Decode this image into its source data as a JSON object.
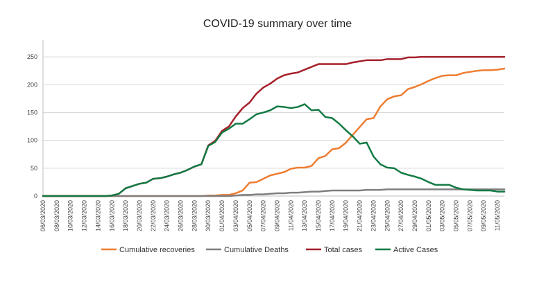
{
  "colors": {
    "recoveries": "#ED7D31",
    "deaths": "#7F7F7F",
    "total": "#A5202A",
    "active": "#137A43",
    "grid": "#D9D9D9",
    "axis": "#BFBFBF"
  },
  "chart_data": {
    "type": "line",
    "title": "COVID-19 summary over time",
    "xlabel": "",
    "ylabel": "",
    "ylim": [
      0,
      280
    ],
    "yticks": [
      0,
      50,
      100,
      150,
      200,
      250
    ],
    "grid": true,
    "legend_position": "bottom",
    "x": [
      "06/03/2020",
      "07/03/2020",
      "08/03/2020",
      "09/03/2020",
      "10/03/2020",
      "11/03/2020",
      "12/03/2020",
      "13/03/2020",
      "14/03/2020",
      "15/03/2020",
      "16/03/2020",
      "17/03/2020",
      "18/03/2020",
      "19/03/2020",
      "20/03/2020",
      "21/03/2020",
      "22/03/2020",
      "23/03/2020",
      "24/03/2020",
      "25/03/2020",
      "26/03/2020",
      "27/03/2020",
      "28/03/2020",
      "29/03/2020",
      "30/03/2020",
      "31/03/2020",
      "01/04/2020",
      "02/04/2020",
      "03/04/2020",
      "04/04/2020",
      "05/04/2020",
      "06/04/2020",
      "07/04/2020",
      "08/04/2020",
      "09/04/2020",
      "10/04/2020",
      "11/04/2020",
      "12/04/2020",
      "13/04/2020",
      "14/04/2020",
      "15/04/2020",
      "16/04/2020",
      "17/04/2020",
      "18/04/2020",
      "19/04/2020",
      "20/04/2020",
      "21/04/2020",
      "22/04/2020",
      "23/04/2020",
      "24/04/2020",
      "25/04/2020",
      "26/04/2020",
      "27/04/2020",
      "28/04/2020",
      "29/04/2020",
      "30/04/2020",
      "01/05/2020",
      "02/05/2020",
      "03/05/2020",
      "04/05/2020",
      "05/05/2020",
      "06/05/2020",
      "07/05/2020",
      "08/05/2020",
      "09/05/2020",
      "10/05/2020",
      "11/05/2020",
      "12/05/2020"
    ],
    "x_tick_labels": [
      "06/03/2020",
      "08/03/2020",
      "10/03/2020",
      "12/03/2020",
      "14/03/2020",
      "16/03/2020",
      "18/03/2020",
      "20/03/2020",
      "22/03/2020",
      "24/03/2020",
      "26/03/2020",
      "28/03/2020",
      "30/03/2020",
      "01/04/2020",
      "03/04/2020",
      "05/04/2020",
      "07/04/2020",
      "09/04/2020",
      "11/04/2020",
      "13/04/2020",
      "15/04/2020",
      "17/04/2020",
      "19/04/2020",
      "21/04/2020",
      "23/04/2020",
      "25/04/2020",
      "27/04/2020",
      "29/04/2020",
      "01/05/2020",
      "03/05/2020",
      "05/05/2020",
      "07/05/2020",
      "09/05/2020",
      "11/05/2020"
    ],
    "series": [
      {
        "name": "Cumulative recoveries",
        "color_key": "recoveries",
        "values": [
          0,
          0,
          0,
          0,
          0,
          0,
          0,
          0,
          0,
          0,
          0,
          0,
          0,
          0,
          0,
          0,
          0,
          0,
          0,
          0,
          0,
          0,
          0,
          0,
          1,
          1,
          2,
          2,
          5,
          10,
          24,
          25,
          31,
          37,
          40,
          43,
          49,
          51,
          51,
          54,
          68,
          72,
          84,
          86,
          96,
          110,
          124,
          138,
          140,
          161,
          174,
          179,
          181,
          192,
          196,
          201,
          207,
          212,
          216,
          217,
          217,
          221,
          223,
          225,
          226,
          226,
          227,
          229
        ]
      },
      {
        "name": "Cumulative Deaths",
        "color_key": "deaths",
        "values": [
          0,
          0,
          0,
          0,
          0,
          0,
          0,
          0,
          0,
          0,
          0,
          0,
          0,
          0,
          0,
          0,
          0,
          0,
          0,
          0,
          0,
          0,
          0,
          0,
          0,
          0,
          0,
          0,
          1,
          2,
          2,
          3,
          3,
          4,
          5,
          5,
          6,
          6,
          7,
          8,
          8,
          9,
          10,
          10,
          10,
          10,
          10,
          11,
          11,
          11,
          12,
          12,
          12,
          12,
          12,
          12,
          12,
          12,
          12,
          12,
          12,
          12,
          12,
          12,
          12,
          12,
          12,
          12
        ]
      },
      {
        "name": "Total cases",
        "color_key": "total",
        "values": [
          0,
          0,
          0,
          0,
          0,
          0,
          0,
          0,
          0,
          0,
          1,
          4,
          14,
          18,
          22,
          24,
          31,
          32,
          35,
          39,
          42,
          47,
          53,
          57,
          91,
          99,
          117,
          125,
          143,
          158,
          168,
          184,
          195,
          202,
          211,
          217,
          220,
          222,
          227,
          232,
          237,
          237,
          237,
          237,
          237,
          240,
          242,
          244,
          244,
          244,
          246,
          246,
          246,
          249,
          249,
          250,
          250,
          250,
          250,
          250,
          250,
          250,
          250,
          250,
          250,
          250,
          250,
          250
        ]
      },
      {
        "name": "Active Cases",
        "color_key": "active",
        "values": [
          0,
          0,
          0,
          0,
          0,
          0,
          0,
          0,
          0,
          0,
          1,
          4,
          14,
          18,
          22,
          24,
          31,
          32,
          35,
          39,
          42,
          47,
          53,
          57,
          90,
          97,
          114,
          121,
          130,
          130,
          138,
          147,
          150,
          154,
          161,
          160,
          158,
          160,
          165,
          154,
          155,
          142,
          140,
          130,
          118,
          107,
          94,
          96,
          71,
          57,
          51,
          50,
          42,
          38,
          35,
          31,
          25,
          20,
          20,
          20,
          15,
          12,
          11,
          10,
          10,
          10,
          8,
          8
        ]
      }
    ]
  }
}
